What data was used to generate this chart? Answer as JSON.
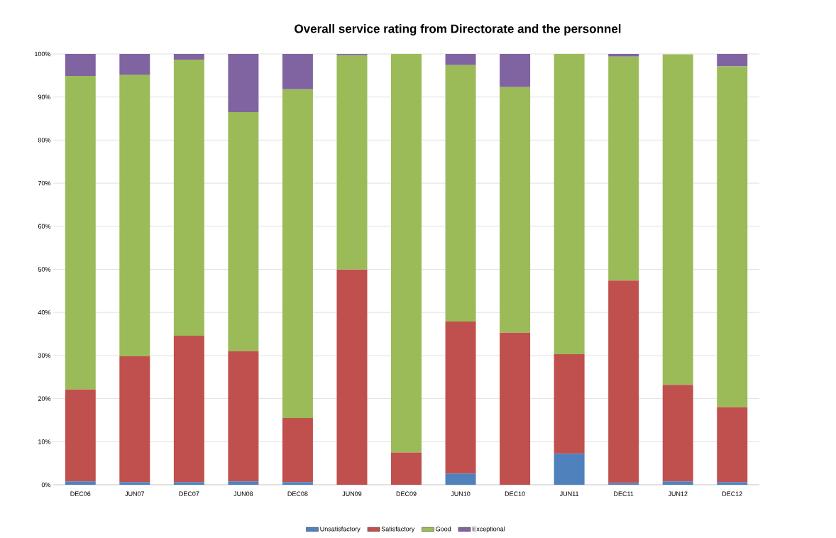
{
  "chart_data": {
    "type": "bar",
    "stacked": true,
    "title": "Overall service rating from Directorate and the personnel",
    "categories": [
      "DEC06",
      "JUN07",
      "DEC07",
      "JUN08",
      "DEC08",
      "JUN09",
      "DEC09",
      "JUN10",
      "DEC10",
      "JUN11",
      "DEC11",
      "JUN12",
      "DEC12"
    ],
    "series": [
      {
        "name": "Unsatisfactory",
        "color": "#4f81bd",
        "values": [
          0.8,
          0.6,
          0.6,
          0.8,
          0.6,
          0,
          0,
          2.6,
          0,
          7.2,
          0.4,
          0.8,
          0.6
        ]
      },
      {
        "name": "Satisfactory",
        "color": "#c0504d",
        "values": [
          21.3,
          29.2,
          34.0,
          30.2,
          14.9,
          50.0,
          7.5,
          35.3,
          35.3,
          23.1,
          47.0,
          22.4,
          17.4
        ]
      },
      {
        "name": "Good",
        "color": "#9bbb59",
        "values": [
          72.8,
          65.3,
          64.1,
          55.5,
          76.3,
          49.7,
          92.5,
          59.5,
          57.0,
          69.7,
          52.0,
          76.7,
          79.1
        ]
      },
      {
        "name": "Exceptional",
        "color": "#8064a2",
        "values": [
          5.1,
          4.9,
          1.3,
          13.5,
          8.2,
          0.3,
          0,
          2.6,
          7.7,
          0,
          0.6,
          0,
          2.9
        ]
      }
    ],
    "ylim": [
      0,
      100
    ],
    "yticks": [
      {
        "value": 0,
        "label": "0%"
      },
      {
        "value": 10,
        "label": "10%"
      },
      {
        "value": 20,
        "label": "20%"
      },
      {
        "value": 30,
        "label": "30%"
      },
      {
        "value": 40,
        "label": "40%"
      },
      {
        "value": 50,
        "label": "50%"
      },
      {
        "value": 60,
        "label": "60%"
      },
      {
        "value": 70,
        "label": "70%"
      },
      {
        "value": 80,
        "label": "80%"
      },
      {
        "value": 90,
        "label": "90%"
      },
      {
        "value": 100,
        "label": "100%"
      }
    ],
    "grid": "y",
    "legend": "bottom"
  }
}
